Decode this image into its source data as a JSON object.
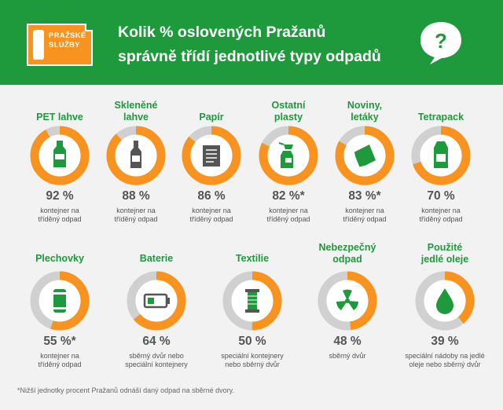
{
  "header": {
    "logo_text": "PRAŽSKÉ\nSLUŽBY",
    "title_line1": "Kolik % oslovených Pražanů",
    "title_line2": "správně třídí jednotlivé typy odpadů",
    "bubble_symbol": "?"
  },
  "colors": {
    "header_green": "#1e9a3c",
    "donut_orange": "#f7931e",
    "donut_gray": "#d0d0d0",
    "background": "#f2f2f2"
  },
  "chart_data": {
    "type": "pie",
    "items": [
      {
        "label": "PET lahve",
        "value": 92,
        "value_text": "92 %",
        "desc": "kontejner na\ntříděný odpad",
        "icon": "pet-bottle-icon"
      },
      {
        "label": "Skleněné\nlahve",
        "value": 88,
        "value_text": "88 %",
        "desc": "kontejner na\ntříděný odpad",
        "icon": "glass-bottle-icon"
      },
      {
        "label": "Papír",
        "value": 86,
        "value_text": "86 %",
        "desc": "kontejner na\ntříděný odpad",
        "icon": "paper-icon"
      },
      {
        "label": "Ostatní\nplasty",
        "value": 82,
        "value_text": "82 %*",
        "desc": "kontejner na\ntříděný odpad",
        "icon": "spray-bottle-icon"
      },
      {
        "label": "Noviny,\nletáky",
        "value": 83,
        "value_text": "83 %*",
        "desc": "kontejner na\ntříděný odpad",
        "icon": "newspaper-icon"
      },
      {
        "label": "Tetrapack",
        "value": 70,
        "value_text": "70 %",
        "desc": "kontejner na\ntříděný odpad",
        "icon": "carton-icon"
      },
      {
        "label": "Plechovky",
        "value": 55,
        "value_text": "55 %*",
        "desc": "kontejner na\ntříděný odpad",
        "icon": "can-icon"
      },
      {
        "label": "Baterie",
        "value": 64,
        "value_text": "64 %",
        "desc": "sběrný dvůr nebo\nspeciální kontejnery",
        "icon": "battery-icon"
      },
      {
        "label": "Textilie",
        "value": 50,
        "value_text": "50 %",
        "desc": "speciální kontejnery\nnebo sběrný dvůr",
        "icon": "thread-spool-icon"
      },
      {
        "label": "Nebezpečný\nodpad",
        "value": 48,
        "value_text": "48 %",
        "desc": "sběrný dvůr",
        "icon": "radiation-icon"
      },
      {
        "label": "Použité\njedlé oleje",
        "value": 39,
        "value_text": "39 %",
        "desc": "speciální nádoby na jedlé\noleje nebo sběrný dvůr",
        "icon": "oil-drop-icon"
      }
    ]
  },
  "footnote": "*Nižší jednotky procent Pražanů odnáší daný odpad na sběrné dvory."
}
